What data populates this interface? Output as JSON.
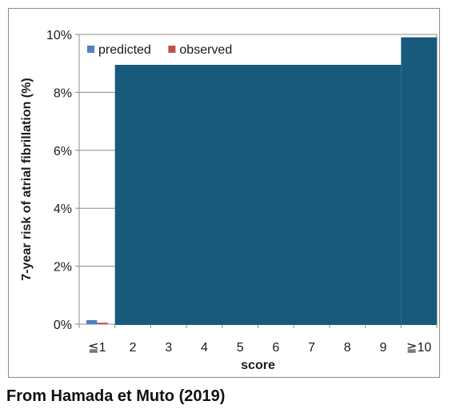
{
  "chart_data": {
    "type": "bar",
    "categories": [
      "≦1",
      "2",
      "3",
      "4",
      "5",
      "6",
      "7",
      "8",
      "9",
      "≧10"
    ],
    "series": [
      {
        "name": "predicted",
        "color": "#4f81bd",
        "values": [
          0.14,
          null,
          null,
          null,
          null,
          null,
          null,
          null,
          null,
          null
        ]
      },
      {
        "name": "observed",
        "color": "#c0504d",
        "values": [
          0.05,
          null,
          null,
          null,
          null,
          null,
          null,
          null,
          null,
          null
        ]
      }
    ],
    "overlay": {
      "color": "#175a7c",
      "description_levels": [
        {
          "from_category": "2",
          "to_category": "9",
          "value": 8.95
        },
        {
          "from_category": "≧10",
          "to_category": "≧10",
          "value": 9.9
        }
      ]
    },
    "xlabel": "score",
    "ylabel": "7-year risk of atrial fibrillation (%)",
    "ylim": [
      0,
      10
    ],
    "yticks": [
      "0%",
      "2%",
      "4%",
      "6%",
      "8%",
      "10%"
    ],
    "ytick_values": [
      0,
      2,
      4,
      6,
      8,
      10
    ],
    "grid": true,
    "legend_position": "top-left"
  },
  "caption": "From Hamada et Muto (2019)"
}
